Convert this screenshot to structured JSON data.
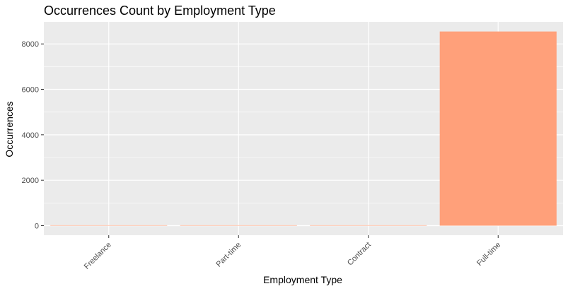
{
  "chart_data": {
    "type": "bar",
    "title": "Occurrences Count by Employment Type",
    "xlabel": "Employment Type",
    "ylabel": "Occurrences",
    "categories": [
      "Freelance",
      "Part-time",
      "Contract",
      "Full-time"
    ],
    "values": [
      10,
      17,
      19,
      8547
    ],
    "ylim": [
      -420,
      8970
    ],
    "yticks": [
      0,
      2000,
      4000,
      6000,
      8000
    ],
    "ytick_labels": [
      "0",
      "2000",
      "4000",
      "6000",
      "8000"
    ],
    "grid": true,
    "legend": "none",
    "colors": {
      "bar": "#ffa07a",
      "panel": "#ebebeb",
      "grid_major": "#ffffff",
      "tick_text": "#4d4d4d"
    }
  }
}
